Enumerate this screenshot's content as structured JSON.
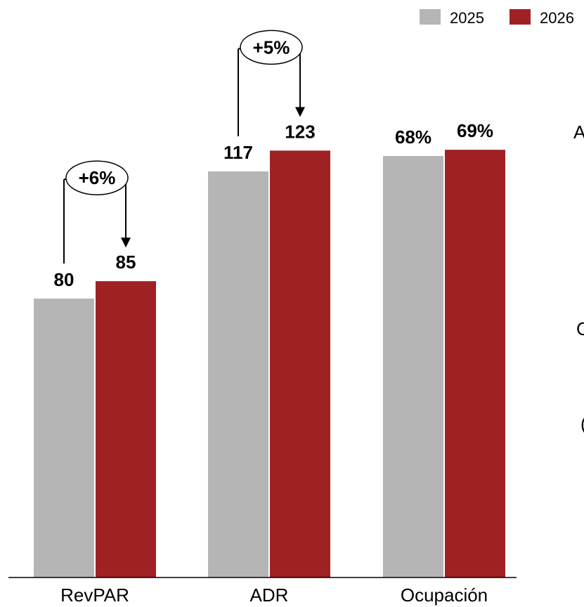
{
  "chart_data": {
    "type": "bar",
    "categories": [
      "RevPAR",
      "ADR",
      "Ocupación"
    ],
    "series": [
      {
        "name": "2025",
        "values": [
          80,
          117,
          68
        ],
        "labels": [
          "80",
          "117",
          "68%"
        ],
        "color": "#b5b5b5"
      },
      {
        "name": "2026",
        "values": [
          85,
          123,
          69
        ],
        "labels": [
          "85",
          "123",
          "69%"
        ],
        "color": "#a02124"
      }
    ],
    "annotations": [
      {
        "category": "RevPAR",
        "text": "+6%"
      },
      {
        "category": "ADR",
        "text": "+5%"
      }
    ],
    "legend": "top-right",
    "grid": false,
    "axis_visible": false
  },
  "edge_text": [
    "A",
    "C",
    "("
  ]
}
